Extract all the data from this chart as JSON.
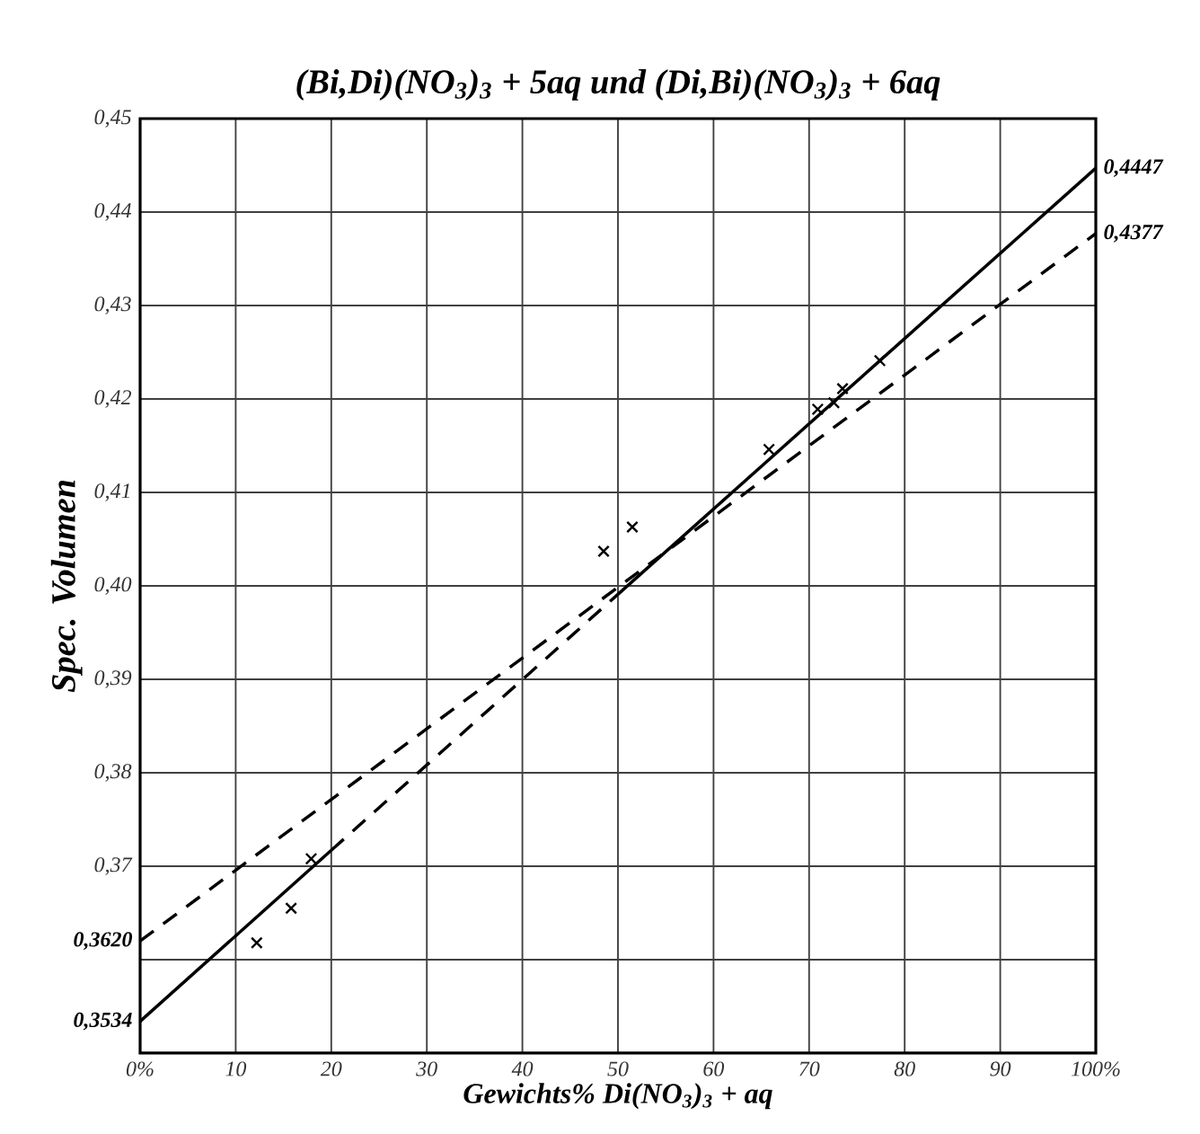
{
  "chart_data": {
    "type": "scatter",
    "title": "(Bi,Di)(NO$_{3}$)$_{3}$ + 5aq und (Di,Bi)(NO$_{3}$)$_{3}$ + 6aq",
    "xlabel": "Gewichts% Di(NO$_{3}$)$_{3}$ + aq",
    "ylabel": "Spec. Volumen",
    "xlim": [
      0,
      100
    ],
    "ylim": [
      0.35,
      0.45
    ],
    "xticks": [
      {
        "value": 0,
        "label": "0%"
      },
      10,
      20,
      30,
      40,
      50,
      60,
      70,
      80,
      90,
      {
        "value": 100,
        "label": "100%"
      }
    ],
    "yticks": [
      {
        "value": 0.35,
        "label": null
      },
      {
        "value": 0.36,
        "label": null
      },
      {
        "value": 0.37,
        "label": "0,37"
      },
      {
        "value": 0.38,
        "label": "0,38"
      },
      {
        "value": 0.39,
        "label": "0,39"
      },
      {
        "value": 0.4,
        "label": "0,40"
      },
      {
        "value": 0.41,
        "label": "0,41"
      },
      {
        "value": 0.42,
        "label": "0,42"
      },
      {
        "value": 0.43,
        "label": "0,43"
      },
      {
        "value": 0.44,
        "label": "0,44"
      },
      {
        "value": 0.45,
        "label": "0,45"
      }
    ],
    "grid": true,
    "series": [
      {
        "color": "#000000",
        "marker": "cross",
        "x": [
          12.2,
          15.8,
          17.9,
          48.5,
          51.5,
          65.8,
          70.9,
          72.6,
          73.5,
          77.4
        ],
        "values": [
          0.3618,
          0.3655,
          0.3708,
          0.4037,
          0.4063,
          0.4146,
          0.4189,
          0.4196,
          0.4211,
          0.4241
        ]
      },
      {
        "type": "line",
        "color": "#000000",
        "line_style": "solid",
        "x": [
          0,
          20
        ],
        "values": [
          0.3534,
          0.3717
        ],
        "value_labels": [
          "0,3534",
          null
        ]
      },
      {
        "type": "line",
        "color": "#000000",
        "line_style": "dashed",
        "x": [
          20,
          50
        ],
        "values": [
          0.3717,
          0.3991
        ]
      },
      {
        "type": "line",
        "color": "#000000",
        "line_style": "solid",
        "x": [
          50,
          100
        ],
        "values": [
          0.3991,
          0.4447
        ],
        "value_labels": [
          null,
          "0,4447"
        ]
      },
      {
        "type": "line",
        "color": "#000000",
        "line_style": "dashed",
        "x": [
          0,
          100
        ],
        "values": [
          0.362,
          0.4377
        ],
        "value_labels": [
          "0,3620",
          "0,4377"
        ]
      }
    ]
  }
}
